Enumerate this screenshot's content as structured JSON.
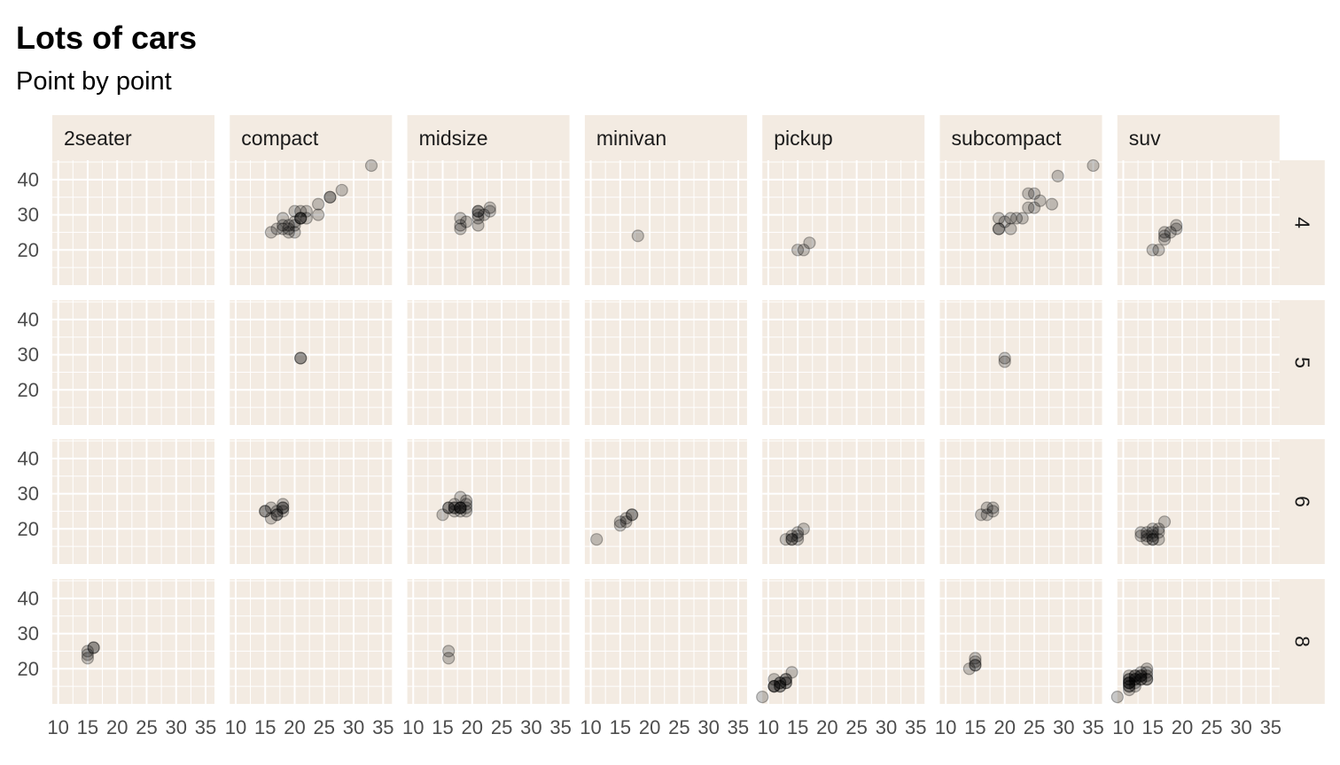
{
  "chart_data": {
    "type": "scatter",
    "title": "Lots of cars",
    "subtitle": "Point by point",
    "xlabel": "",
    "ylabel": "",
    "facet_cols": [
      "2seater",
      "compact",
      "midsize",
      "minivan",
      "pickup",
      "subcompact",
      "suv"
    ],
    "facet_rows": [
      "4",
      "5",
      "6",
      "8"
    ],
    "x_ticks": [
      "10",
      "15",
      "20",
      "25",
      "30",
      "35"
    ],
    "y_ticks": [
      "20",
      "30",
      "40"
    ],
    "xlim": [
      9,
      36.5
    ],
    "ylim": [
      10,
      45.5
    ],
    "point_color": "#000000",
    "point_alpha": 0.22,
    "panel_background": "#f3ebe2",
    "grid_color": "#ffffff",
    "grid": true,
    "legend": "none",
    "panels": [
      {
        "col": "compact",
        "row": "4",
        "points": [
          [
            16,
            25
          ],
          [
            17,
            26
          ],
          [
            18,
            29
          ],
          [
            18,
            27
          ],
          [
            18,
            26
          ],
          [
            19,
            25
          ],
          [
            19,
            26
          ],
          [
            19,
            27
          ],
          [
            20,
            28
          ],
          [
            20,
            31
          ],
          [
            20,
            25
          ],
          [
            20,
            27
          ],
          [
            21,
            29
          ],
          [
            21,
            29
          ],
          [
            21,
            31
          ],
          [
            21,
            29
          ],
          [
            22,
            29
          ],
          [
            22,
            31
          ],
          [
            24,
            30
          ],
          [
            24,
            33
          ],
          [
            26,
            35
          ],
          [
            26,
            35
          ],
          [
            28,
            37
          ],
          [
            33,
            44
          ]
        ]
      },
      {
        "col": "midsize",
        "row": "4",
        "points": [
          [
            18,
            26
          ],
          [
            18,
            27
          ],
          [
            18,
            29
          ],
          [
            19,
            28
          ],
          [
            21,
            27
          ],
          [
            21,
            29
          ],
          [
            21,
            30
          ],
          [
            21,
            31
          ],
          [
            21,
            31
          ],
          [
            22,
            30
          ],
          [
            23,
            31
          ],
          [
            23,
            32
          ]
        ]
      },
      {
        "col": "minivan",
        "row": "4",
        "points": [
          [
            18,
            24
          ]
        ]
      },
      {
        "col": "pickup",
        "row": "4",
        "points": [
          [
            15,
            20
          ],
          [
            16,
            20
          ],
          [
            17,
            22
          ]
        ]
      },
      {
        "col": "subcompact",
        "row": "4",
        "points": [
          [
            19,
            26
          ],
          [
            19,
            29
          ],
          [
            19,
            26
          ],
          [
            20,
            28
          ],
          [
            21,
            26
          ],
          [
            21,
            29
          ],
          [
            22,
            29
          ],
          [
            23,
            29
          ],
          [
            24,
            32
          ],
          [
            24,
            36
          ],
          [
            25,
            32
          ],
          [
            25,
            36
          ],
          [
            26,
            34
          ],
          [
            28,
            33
          ],
          [
            29,
            41
          ],
          [
            35,
            44
          ]
        ]
      },
      {
        "col": "suv",
        "row": "4",
        "points": [
          [
            15,
            20
          ],
          [
            16,
            20
          ],
          [
            17,
            23
          ],
          [
            17,
            24
          ],
          [
            17,
            25
          ],
          [
            18,
            25
          ],
          [
            19,
            26
          ],
          [
            19,
            27
          ]
        ]
      },
      {
        "col": "compact",
        "row": "5",
        "points": [
          [
            21,
            29
          ],
          [
            21,
            29
          ]
        ]
      },
      {
        "col": "subcompact",
        "row": "5",
        "points": [
          [
            20,
            28
          ],
          [
            20,
            29
          ]
        ]
      },
      {
        "col": "compact",
        "row": "6",
        "points": [
          [
            15,
            25
          ],
          [
            15,
            25
          ],
          [
            16,
            23
          ],
          [
            16,
            26
          ],
          [
            17,
            24
          ],
          [
            17,
            25
          ],
          [
            17,
            24
          ],
          [
            18,
            25
          ],
          [
            18,
            26
          ],
          [
            18,
            27
          ],
          [
            18,
            26
          ]
        ]
      },
      {
        "col": "midsize",
        "row": "6",
        "points": [
          [
            15,
            24
          ],
          [
            16,
            26
          ],
          [
            16,
            26
          ],
          [
            17,
            26
          ],
          [
            17,
            25
          ],
          [
            17,
            27
          ],
          [
            18,
            26
          ],
          [
            18,
            26
          ],
          [
            18,
            29
          ],
          [
            18,
            26
          ],
          [
            19,
            27
          ],
          [
            19,
            26
          ],
          [
            19,
            28
          ],
          [
            19,
            25
          ],
          [
            18,
            25
          ],
          [
            17,
            26
          ]
        ]
      },
      {
        "col": "minivan",
        "row": "6",
        "points": [
          [
            11,
            17
          ],
          [
            15,
            21
          ],
          [
            15,
            22
          ],
          [
            16,
            22
          ],
          [
            16,
            23
          ],
          [
            17,
            24
          ],
          [
            17,
            24
          ]
        ]
      },
      {
        "col": "pickup",
        "row": "6",
        "points": [
          [
            13,
            17
          ],
          [
            14,
            17
          ],
          [
            14,
            18
          ],
          [
            14,
            17
          ],
          [
            15,
            17
          ],
          [
            15,
            19
          ],
          [
            15,
            18
          ],
          [
            16,
            20
          ]
        ]
      },
      {
        "col": "subcompact",
        "row": "6",
        "points": [
          [
            16,
            24
          ],
          [
            17,
            24
          ],
          [
            17,
            26
          ],
          [
            18,
            25
          ],
          [
            18,
            26
          ]
        ]
      },
      {
        "col": "suv",
        "row": "6",
        "points": [
          [
            13,
            18
          ],
          [
            13,
            19
          ],
          [
            14,
            17
          ],
          [
            14,
            19
          ],
          [
            15,
            17
          ],
          [
            15,
            17
          ],
          [
            15,
            19
          ],
          [
            15,
            20
          ],
          [
            16,
            19
          ],
          [
            16,
            17
          ],
          [
            16,
            20
          ],
          [
            17,
            22
          ],
          [
            14,
            18
          ],
          [
            15,
            18
          ]
        ]
      },
      {
        "col": "2seater",
        "row": "8",
        "points": [
          [
            15,
            23
          ],
          [
            15,
            24
          ],
          [
            15,
            25
          ],
          [
            16,
            26
          ],
          [
            16,
            26
          ]
        ]
      },
      {
        "col": "midsize",
        "row": "8",
        "points": [
          [
            16,
            23
          ],
          [
            16,
            25
          ]
        ]
      },
      {
        "col": "pickup",
        "row": "8",
        "points": [
          [
            9,
            12
          ],
          [
            11,
            15
          ],
          [
            11,
            15
          ],
          [
            11,
            17
          ],
          [
            11,
            15
          ],
          [
            12,
            16
          ],
          [
            12,
            15
          ],
          [
            12,
            16
          ],
          [
            13,
            16
          ],
          [
            13,
            17
          ],
          [
            13,
            17
          ],
          [
            14,
            19
          ],
          [
            12,
            15
          ],
          [
            13,
            16
          ]
        ]
      },
      {
        "col": "subcompact",
        "row": "8",
        "points": [
          [
            14,
            20
          ],
          [
            15,
            21
          ],
          [
            15,
            22
          ],
          [
            15,
            23
          ],
          [
            15,
            21
          ]
        ]
      },
      {
        "col": "suv",
        "row": "8",
        "points": [
          [
            9,
            12
          ],
          [
            11,
            14
          ],
          [
            11,
            15
          ],
          [
            11,
            15
          ],
          [
            11,
            16
          ],
          [
            11,
            17
          ],
          [
            11,
            17
          ],
          [
            11,
            18
          ],
          [
            11,
            16
          ],
          [
            12,
            17
          ],
          [
            12,
            18
          ],
          [
            12,
            18
          ],
          [
            12,
            17
          ],
          [
            13,
            17
          ],
          [
            13,
            18
          ],
          [
            13,
            19
          ],
          [
            13,
            17
          ],
          [
            14,
            17
          ],
          [
            14,
            18
          ],
          [
            14,
            19
          ],
          [
            14,
            20
          ],
          [
            14,
            17
          ],
          [
            12,
            16
          ],
          [
            13,
            18
          ],
          [
            11,
            16
          ],
          [
            12,
            15
          ]
        ]
      }
    ]
  }
}
